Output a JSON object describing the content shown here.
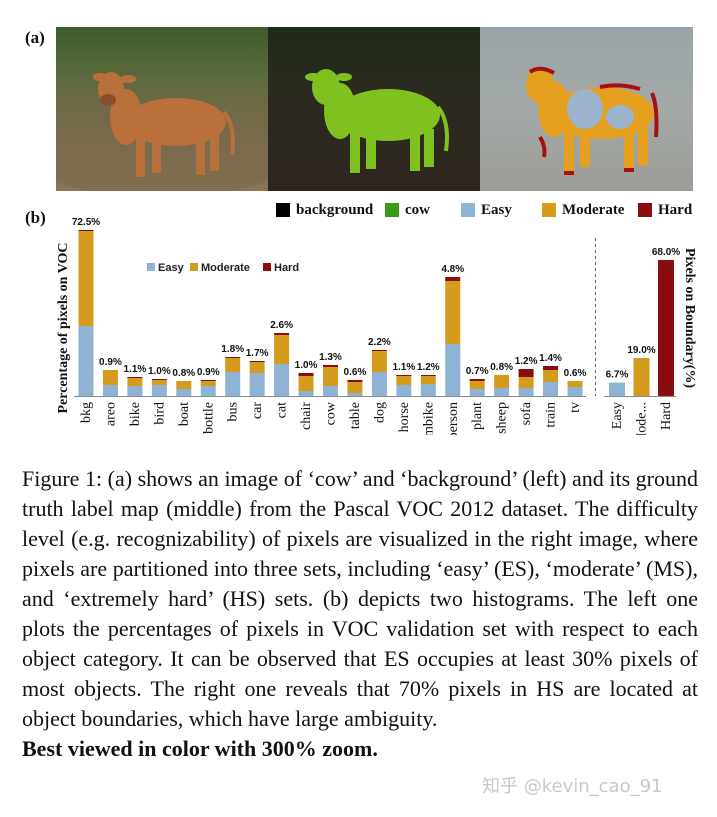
{
  "panels": {
    "a_label": "(a)",
    "b_label": "(b)"
  },
  "legend": [
    {
      "label": "background",
      "color": "#000000"
    },
    {
      "label": "cow",
      "color": "#3a9a1a"
    },
    {
      "label": "Easy",
      "color": "#8fb3d4"
    },
    {
      "label": "Moderate",
      "color": "#d59b1c"
    },
    {
      "label": "Hard",
      "color": "#8b0c0c"
    }
  ],
  "chart_data": [
    {
      "type": "bar",
      "ylabel": "Percentage of pixels on VOC",
      "legend_position": "top-left",
      "inner_legend": [
        "Easy",
        "Moderate",
        "Hard"
      ],
      "categories": [
        "bkg",
        "areo",
        "bike",
        "bird",
        "boat",
        "bottle",
        "bus",
        "car",
        "cat",
        "chair",
        "cow",
        "table",
        "dog",
        "horse",
        "mbike",
        "person",
        "plant",
        "sheep",
        "sofa",
        "train",
        "tv"
      ],
      "totals": [
        "72.5%",
        "0.9%",
        "1.1%",
        "1.0%",
        "0.8%",
        "0.9%",
        "1.8%",
        "1.7%",
        "2.6%",
        "1.0%",
        "1.3%",
        "0.6%",
        "2.2%",
        "1.1%",
        "1.2%",
        "4.8%",
        "0.7%",
        "0.8%",
        "1.2%",
        "1.4%",
        "0.6%"
      ],
      "series": [
        {
          "name": "Easy",
          "color": "#8fb3d4",
          "values": [
            70,
            11,
            10,
            11,
            7,
            10,
            24,
            23,
            32,
            5,
            10,
            3,
            24,
            11,
            12,
            52,
            7,
            8,
            8,
            14,
            9
          ]
        },
        {
          "name": "Moderate",
          "color": "#d59b1c",
          "values": [
            95,
            15,
            8,
            5,
            8,
            5,
            14,
            11,
            29,
            15,
            19,
            11,
            21,
            9,
            8,
            63,
            8,
            13,
            11,
            12,
            6
          ]
        },
        {
          "name": "Hard",
          "color": "#8b0c0c",
          "values": [
            1,
            0,
            1,
            1,
            0,
            1,
            1,
            1,
            2,
            3,
            2,
            2,
            1,
            1,
            1,
            4,
            2,
            0,
            8,
            4,
            0
          ]
        }
      ]
    },
    {
      "type": "bar",
      "ylabel": "Pixels on Boundary(%)",
      "categories": [
        "Easy",
        "Mode...",
        "Hard"
      ],
      "values": [
        6.7,
        19.0,
        68.0
      ],
      "labels": [
        "6.7%",
        "19.0%",
        "68.0%"
      ],
      "colors": [
        "#8fb3d4",
        "#d59b1c",
        "#8b0c0c"
      ]
    }
  ],
  "caption": {
    "body": "Figure 1: (a) shows an image of ‘cow’ and ‘background’ (left) and its ground truth label map (middle) from the Pascal VOC 2012 dataset. The difficulty level (e.g. recognizability) of pixels are visualized in the right image, where pixels are partitioned into three sets, including ‘easy’ (ES), ‘moderate’ (MS), and ‘extremely hard’ (HS) sets. (b) depicts two histograms. The left one plots the percentages of pixels in VOC validation set with respect to each object category. It can be observed that ES occupies at least 30% pixels of most objects. The right one reveals that 70% pixels in HS are located at object boundaries, which have large ambiguity.",
    "bold": "Best viewed in color with 300% zoom."
  },
  "watermark": "知乎 @kevin_cao_91"
}
